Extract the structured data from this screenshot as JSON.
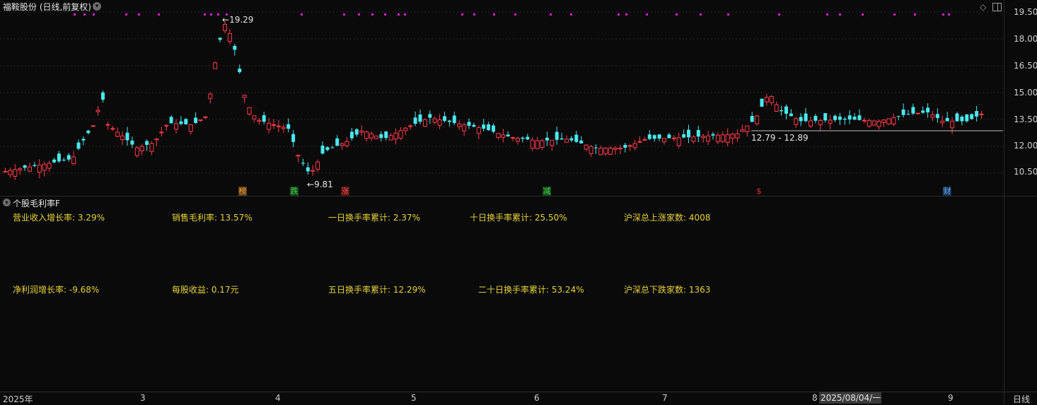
{
  "header": {
    "title": "福鞍股份 (日线,前复权)"
  },
  "price_axis": {
    "labels": [
      "19.50",
      "18.00",
      "16.50",
      "15.00",
      "13.50",
      "12.00",
      "10.50"
    ]
  },
  "annotations": {
    "high": "19.29",
    "low": "9.81",
    "range": "12.79 - 12.89"
  },
  "event_marks": [
    {
      "label": "榜",
      "color": "#e07b2a"
    },
    {
      "label": "跌",
      "color": "#2fbf3a"
    },
    {
      "label": "涨",
      "color": "#e03030"
    },
    {
      "label": "减",
      "color": "#2fbf3a"
    },
    {
      "label": "$",
      "color": "#e03030"
    },
    {
      "label": "财",
      "color": "#3a86e0"
    }
  ],
  "indicator_panel": {
    "title": "个股毛利率F",
    "row1": [
      "营业收入增长率:  3.29%",
      "销售毛利率: 13.57%",
      "一日换手率累计: 2.37%",
      "十日换手率累计: 25.50%",
      "沪深总上涨家数:  4008"
    ],
    "row2": [
      "净利润增长率:  -9.68%",
      "每股收益: 0.17元",
      "五日换手率累计: 12.29%",
      "二十日换手率累计: 53.24%",
      "沪深总下跌家数:  1363"
    ]
  },
  "time_axis": {
    "labels": [
      "2025年",
      "3",
      "4",
      "5",
      "6",
      "7",
      "8",
      "9"
    ],
    "cursor_date": "2025/08/04/一",
    "period": "日线"
  },
  "colors": {
    "up": "#ff3a4a",
    "down": "#4ae8f0",
    "dots": "#d21fd2"
  }
}
